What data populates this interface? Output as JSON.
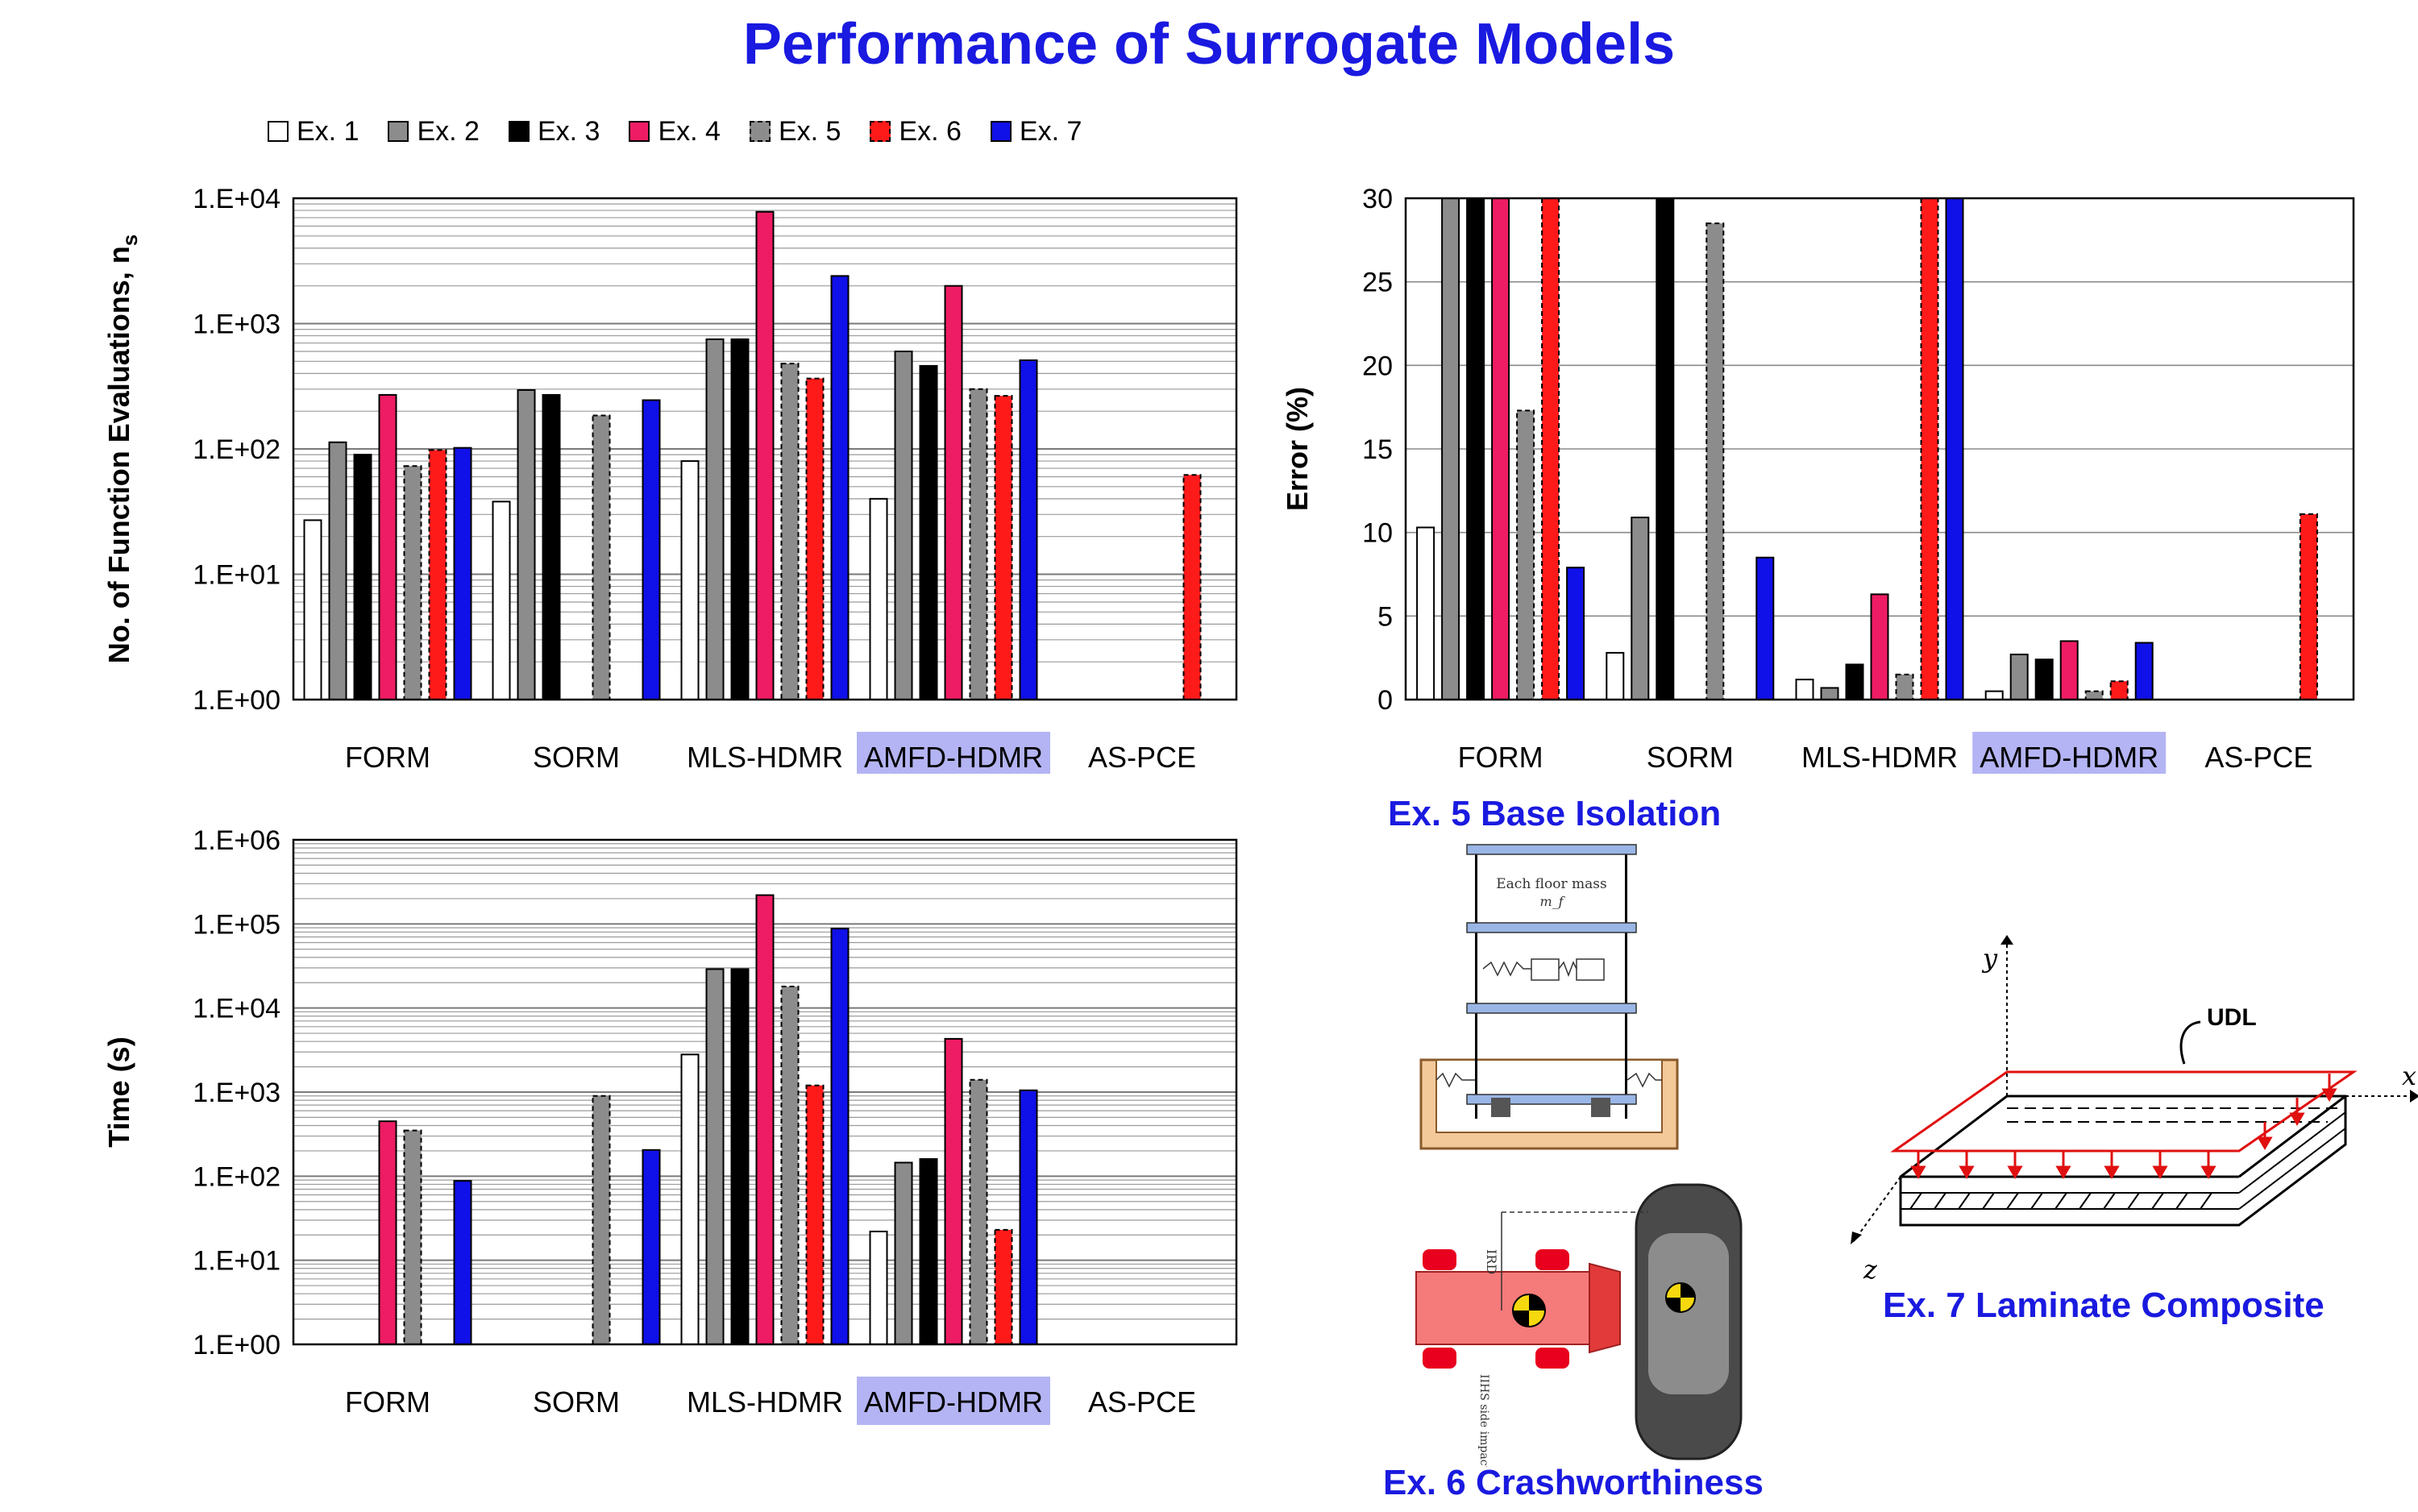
{
  "title": "Performance of Surrogate Models",
  "legend": [
    {
      "name": "Ex. 1",
      "color": "#ffffff",
      "dashed": false
    },
    {
      "name": "Ex. 2",
      "color": "#8c8c8c",
      "dashed": false
    },
    {
      "name": "Ex. 3",
      "color": "#000000",
      "dashed": false
    },
    {
      "name": "Ex. 4",
      "color": "#ee1c64",
      "dashed": false
    },
    {
      "name": "Ex. 5",
      "color": "#8c8c8c",
      "dashed": true
    },
    {
      "name": "Ex. 6",
      "color": "#ff1a1a",
      "dashed": true
    },
    {
      "name": "Ex. 7",
      "color": "#1010e8",
      "dashed": false
    }
  ],
  "highlight_category": "AMFD-HDMR",
  "highlight_color": "#b4b4f4",
  "chart_data": [
    {
      "id": "evaluations",
      "type": "bar",
      "scale": "log",
      "categories": [
        "FORM",
        "SORM",
        "MLS-HDMR",
        "AMFD-HDMR",
        "AS-PCE"
      ],
      "ylabel": "No. of Function Evaluations, n",
      "ylabel_sub": "s",
      "ylim": [
        1,
        10000
      ],
      "yticks": [
        "1.E+00",
        "1.E+01",
        "1.E+02",
        "1.E+03",
        "1.E+04"
      ],
      "series": [
        {
          "name": "Ex. 1",
          "values": [
            27,
            38,
            80,
            40,
            null
          ]
        },
        {
          "name": "Ex. 2",
          "values": [
            113,
            295,
            750,
            600,
            null
          ]
        },
        {
          "name": "Ex. 3",
          "values": [
            90,
            270,
            750,
            460,
            null
          ]
        },
        {
          "name": "Ex. 4",
          "values": [
            270,
            null,
            7800,
            2000,
            null
          ]
        },
        {
          "name": "Ex. 5",
          "values": [
            73,
            185,
            480,
            300,
            null
          ]
        },
        {
          "name": "Ex. 6",
          "values": [
            98,
            null,
            365,
            265,
            62
          ]
        },
        {
          "name": "Ex. 7",
          "values": [
            102,
            245,
            2400,
            510,
            null
          ]
        }
      ]
    },
    {
      "id": "error",
      "type": "bar",
      "scale": "linear",
      "categories": [
        "FORM",
        "SORM",
        "MLS-HDMR",
        "AMFD-HDMR",
        "AS-PCE"
      ],
      "ylabel": "Error (%)",
      "ylim": [
        0,
        30
      ],
      "yticks": [
        "0",
        "5",
        "10",
        "15",
        "20",
        "25",
        "30"
      ],
      "series": [
        {
          "name": "Ex. 1",
          "values": [
            10.3,
            2.8,
            1.2,
            0.5,
            null
          ]
        },
        {
          "name": "Ex. 2",
          "values": [
            30,
            10.9,
            0.7,
            2.7,
            null
          ]
        },
        {
          "name": "Ex. 3",
          "values": [
            30,
            30,
            2.1,
            2.4,
            null
          ]
        },
        {
          "name": "Ex. 4",
          "values": [
            30,
            null,
            6.3,
            3.5,
            null
          ]
        },
        {
          "name": "Ex. 5",
          "values": [
            17.3,
            28.5,
            1.5,
            0.5,
            null
          ]
        },
        {
          "name": "Ex. 6",
          "values": [
            30,
            null,
            30,
            1.1,
            11.1
          ]
        },
        {
          "name": "Ex. 7",
          "values": [
            7.9,
            8.5,
            30,
            3.4,
            null
          ]
        }
      ]
    },
    {
      "id": "time",
      "type": "bar",
      "scale": "log",
      "categories": [
        "FORM",
        "SORM",
        "MLS-HDMR",
        "AMFD-HDMR",
        "AS-PCE"
      ],
      "ylabel": "Time (s)",
      "ylim": [
        1,
        1000000
      ],
      "yticks": [
        "1.E+00",
        "1.E+01",
        "1.E+02",
        "1.E+03",
        "1.E+04",
        "1.E+05",
        "1.E+06"
      ],
      "series": [
        {
          "name": "Ex. 1",
          "values": [
            null,
            null,
            2800,
            22,
            null
          ]
        },
        {
          "name": "Ex. 2",
          "values": [
            null,
            null,
            29000,
            145,
            null
          ]
        },
        {
          "name": "Ex. 3",
          "values": [
            null,
            null,
            29000,
            160,
            null
          ]
        },
        {
          "name": "Ex. 4",
          "values": [
            450,
            null,
            220000,
            4300,
            null
          ]
        },
        {
          "name": "Ex. 5",
          "values": [
            350,
            900,
            18000,
            1400,
            null
          ]
        },
        {
          "name": "Ex. 6",
          "values": [
            null,
            null,
            1200,
            23,
            null
          ]
        },
        {
          "name": "Ex. 7",
          "values": [
            88,
            205,
            88000,
            1050,
            null
          ]
        }
      ]
    }
  ],
  "examples": {
    "ex5": {
      "caption": "Ex. 5  Base Isolation",
      "floor_label": "Each floor mass",
      "floor_sym": "m_f"
    },
    "ex6": {
      "caption": "Ex. 6  Crashworthiness",
      "side_label": "IIHS side impact setup",
      "dim_label": "IRD"
    },
    "ex7": {
      "caption": "Ex. 7  Laminate Composite",
      "load_label": "UDL",
      "axis_x": "x",
      "axis_y": "y",
      "axis_z": "z"
    }
  }
}
